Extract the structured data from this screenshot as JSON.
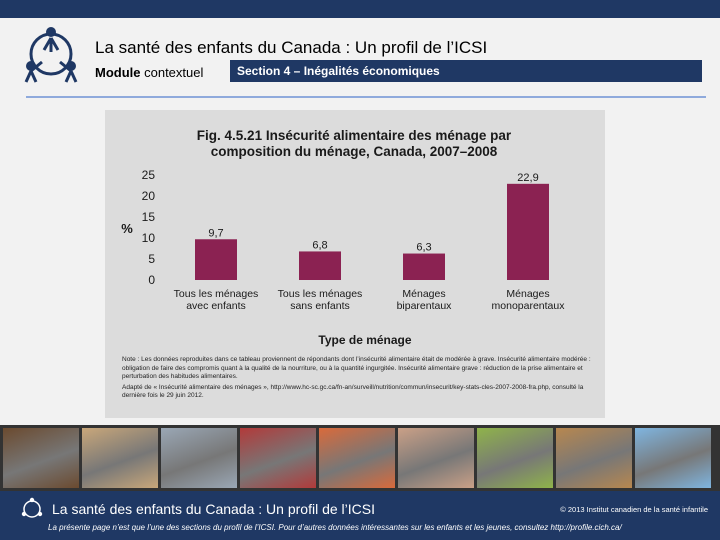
{
  "header": {
    "title": "La santé des enfants du Canada : Un profil de l’ICSI",
    "module_bold": "Module",
    "module_rest": " contextuel",
    "section": "Section 4 – Inégalités économiques"
  },
  "colors": {
    "navy": "#1f3864",
    "bar": "#8b2252",
    "panel": "#dcdcdc"
  },
  "chart_data": {
    "type": "bar",
    "title_line1": "Fig. 4.5.21   Insécurité alimentaire des ménage par",
    "title_line2": "composition du ménage, Canada, 2007–2008",
    "ylabel": "%",
    "xlabel": "Type de ménage",
    "ylim": [
      0,
      25
    ],
    "yticks": [
      "0",
      "5",
      "10",
      "15",
      "20",
      "25"
    ],
    "categories": [
      [
        "Tous les ménages",
        "avec enfants"
      ],
      [
        "Tous les ménages",
        "sans enfants"
      ],
      [
        "Ménages",
        "biparentaux"
      ],
      [
        "Ménages",
        "monoparentaux"
      ]
    ],
    "values": [
      9.7,
      6.8,
      6.3,
      22.9
    ],
    "value_labels": [
      "9,7",
      "6,8",
      "6,3",
      "22,9"
    ],
    "grid": false,
    "legend": "none"
  },
  "notes": {
    "note": "Note : Les données reproduites dans ce tableau proviennent de répondants dont l’insécurité alimentaire était de modérée à grave. Insécurité alimentaire modérée : obligation de faire des compromis quant à la qualité de la nourriture, ou à la quantité ingurgitée. Insécurité alimentaire grave : réduction de la prise alimentaire et perturbation des habitudes alimentaires.",
    "source": "Adapté de « Insécurité alimentaire des ménages », http://www.hc-sc.gc.ca/fn-an/surveill/nutrition/commun/insecurit/key-stats-cles-2007-2008-fra.php, consulté la dernière fois le 29 juin 2012."
  },
  "photos": [
    {
      "label": "photo-1",
      "color": "#6b4a2f"
    },
    {
      "label": "photo-2",
      "color": "#c9a77a"
    },
    {
      "label": "photo-3",
      "color": "#9aa7b5"
    },
    {
      "label": "photo-4",
      "color": "#b23a3a"
    },
    {
      "label": "photo-5",
      "color": "#d96a3b"
    },
    {
      "label": "photo-6",
      "color": "#caa087"
    },
    {
      "label": "photo-7",
      "color": "#8fb34a"
    },
    {
      "label": "photo-8",
      "color": "#b7874f"
    },
    {
      "label": "photo-9",
      "color": "#7fb5e0"
    }
  ],
  "footer": {
    "title": "La santé des enfants du Canada : Un profil de l’ICSI",
    "copyright": "© 2013  Institut canadien de la santé infantile",
    "note": "La présente page n’est que l’une des sections du profil de l’ICSI. Pour d’autres données intéressantes sur les enfants et les jeunes, consultez http://profile.cich.ca/"
  }
}
